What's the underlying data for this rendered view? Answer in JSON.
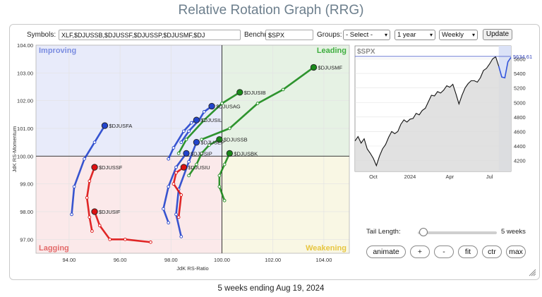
{
  "title": "Relative Rotation Graph (RRG)",
  "controls": {
    "symbols_label": "Symbols:",
    "symbols_value": "XLF,$DJUSSB,$DJUSSF,$DJUSSP,$DJUSMF,$DJ",
    "benchmark_label": "Benchmark:",
    "benchmark_value": "$SPX",
    "groups_label": "Groups:",
    "groups_value": "- Select -",
    "period_value": "1 year",
    "frequency_value": "Weekly",
    "update_label": "Update"
  },
  "rrg": {
    "quadrants": {
      "improving": "Improving",
      "leading": "Leading",
      "lagging": "Lagging",
      "weakening": "Weakening"
    },
    "colors": {
      "improving": "#e8ebfa",
      "leading": "#e6f2e4",
      "lagging": "#fbe9ea",
      "weakening": "#f9f7e4",
      "improving_text": "#7a8ce0",
      "leading_text": "#3fae3f",
      "lagging_text": "#e36a6a",
      "weakening_text": "#e7c640"
    },
    "x_axis_label": "JdK RS-Ratio",
    "y_axis_label": "JdK RS-Momentum",
    "x_ticks": [
      "94.00",
      "96.00",
      "98.00",
      "100.00",
      "102.00",
      "104.00"
    ],
    "y_ticks": [
      "104.00",
      "103.00",
      "102.00",
      "101.00",
      "100.00",
      "99.00",
      "98.00",
      "97.00"
    ],
    "xlim": [
      92.7,
      105.0
    ],
    "ylim": [
      96.5,
      104.0
    ],
    "center": [
      100,
      100
    ],
    "series": [
      {
        "name": "$DJUSMF",
        "color": "#1a8a1a",
        "tail": [
          [
            99.2,
            100.6
          ],
          [
            100.3,
            101.0
          ],
          [
            101.4,
            101.9
          ],
          [
            102.4,
            102.4
          ],
          [
            103.6,
            103.2
          ]
        ]
      },
      {
        "name": "$DJUSIB",
        "color": "#1a8a1a",
        "tail": [
          [
            98.3,
            100.1
          ],
          [
            98.6,
            100.6
          ],
          [
            99.3,
            101.3
          ],
          [
            100.0,
            101.9
          ],
          [
            100.7,
            102.3
          ]
        ]
      },
      {
        "name": "$DJUSAG",
        "color": "#2244cc",
        "tail": [
          [
            98.4,
            100.5
          ],
          [
            98.7,
            100.9
          ],
          [
            99.1,
            101.3
          ],
          [
            99.3,
            101.6
          ],
          [
            99.6,
            101.8
          ]
        ]
      },
      {
        "name": "$DJUSIL",
        "color": "#2244cc",
        "tail": [
          [
            97.9,
            99.9
          ],
          [
            98.1,
            100.3
          ],
          [
            98.5,
            100.9
          ],
          [
            98.8,
            101.2
          ],
          [
            99.0,
            101.3
          ]
        ]
      },
      {
        "name": "$DJUSFA",
        "color": "#2244cc",
        "tail": [
          [
            94.1,
            97.9
          ],
          [
            94.2,
            98.9
          ],
          [
            94.6,
            99.9
          ],
          [
            95.0,
            100.5
          ],
          [
            95.4,
            101.1
          ]
        ]
      },
      {
        "name": "$DJUSSB",
        "color": "#1a8a1a",
        "tail": [
          [
            98.7,
            99.3
          ],
          [
            99.0,
            99.7
          ],
          [
            99.2,
            100.1
          ],
          [
            99.5,
            100.4
          ],
          [
            99.9,
            100.6
          ]
        ]
      },
      {
        "name": "$DJUSEP",
        "color": "#2244cc",
        "tail": [
          [
            98.4,
            97.1
          ],
          [
            98.2,
            97.9
          ],
          [
            98.3,
            98.8
          ],
          [
            98.7,
            99.8
          ],
          [
            99.0,
            100.5
          ]
        ]
      },
      {
        "name": "$DJUSBK",
        "color": "#1a8a1a",
        "tail": [
          [
            100.1,
            98.4
          ],
          [
            99.9,
            98.9
          ],
          [
            99.9,
            99.3
          ],
          [
            100.1,
            99.7
          ],
          [
            100.3,
            100.1
          ]
        ]
      },
      {
        "name": "$DJUSIP",
        "color": "#2244cc",
        "tail": [
          [
            97.9,
            97.6
          ],
          [
            97.7,
            98.1
          ],
          [
            97.9,
            98.9
          ],
          [
            98.2,
            99.6
          ],
          [
            98.6,
            100.1
          ]
        ]
      },
      {
        "name": "$DJUSIU",
        "color": "#dd1111",
        "tail": [
          [
            98.3,
            97.8
          ],
          [
            98.4,
            98.6
          ],
          [
            98.1,
            99.0
          ],
          [
            98.2,
            99.4
          ],
          [
            98.5,
            99.6
          ]
        ]
      },
      {
        "name": "$DJUSSF",
        "color": "#dd1111",
        "tail": [
          [
            94.9,
            97.3
          ],
          [
            94.8,
            97.8
          ],
          [
            94.7,
            98.5
          ],
          [
            94.8,
            99.1
          ],
          [
            95.0,
            99.6
          ]
        ]
      },
      {
        "name": "$DJUSIF",
        "color": "#dd1111",
        "tail": [
          [
            97.2,
            96.9
          ],
          [
            96.2,
            97.0
          ],
          [
            95.6,
            97.0
          ],
          [
            95.2,
            97.5
          ],
          [
            95.0,
            98.0
          ]
        ]
      }
    ]
  },
  "mini_chart": {
    "symbol": "$SPX",
    "last_value": "5634.61",
    "x_ticks": [
      "Oct",
      "2024",
      "Apr",
      "Jul"
    ],
    "y_ticks": [
      "5600",
      "5400",
      "5200",
      "5000",
      "4800",
      "4600",
      "4400",
      "4200"
    ],
    "ylim": [
      4050,
      5780
    ],
    "n_points": 52,
    "highlight_start_index": 47,
    "values": [
      4470,
      4530,
      4440,
      4500,
      4360,
      4300,
      4230,
      4130,
      4260,
      4360,
      4420,
      4520,
      4600,
      4570,
      4600,
      4700,
      4760,
      4730,
      4770,
      4780,
      4850,
      4830,
      4890,
      4920,
      5010,
      5100,
      5090,
      5150,
      5130,
      5170,
      5230,
      5210,
      5250,
      5120,
      4980,
      5100,
      5200,
      5260,
      5300,
      5300,
      5280,
      5340,
      5440,
      5470,
      5530,
      5600,
      5630,
      5500,
      5350,
      5340,
      5560,
      5620
    ]
  },
  "tail": {
    "label": "Tail Length:",
    "value": "5 weeks",
    "weeks": 5
  },
  "buttons": {
    "animate": "animate",
    "plus": "+",
    "minus": "-",
    "fit": "fit",
    "ctr": "ctr",
    "max": "max"
  },
  "footer": "5 weeks ending Aug 19, 2024"
}
